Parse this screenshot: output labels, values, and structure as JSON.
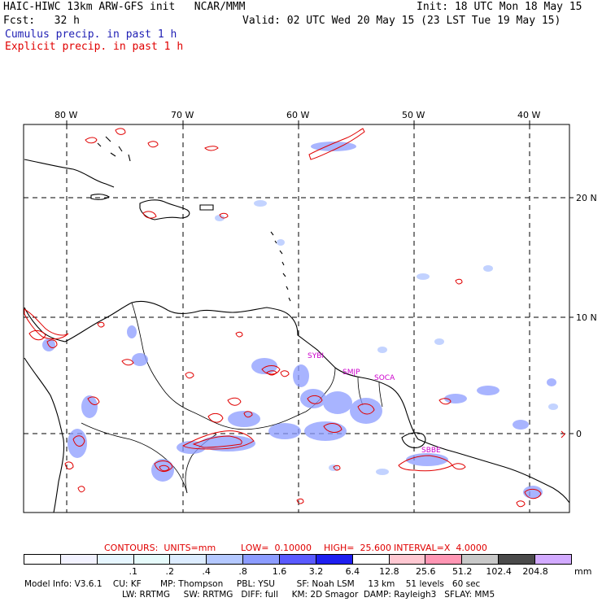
{
  "header": {
    "left_line1": "HAIC-HIWC 13km ARW-GFS init   NCAR/MMM",
    "left_line2": "Fcst:   32 h",
    "right_line1": "Init: 18 UTC Mon 18 May 15",
    "right_line2": "Valid: 02 UTC Wed 20 May 15 (23 LST Tue 19 May 15)",
    "legend_cumulus": "Cumulus precip. in past 1 h",
    "legend_explicit": "Explicit precip. in past 1 h"
  },
  "colors": {
    "cumulus": "#1f1fb4",
    "explicit": "#e00000",
    "station_labels": "#cc00cc"
  },
  "map": {
    "lon_labels": [
      "80 W",
      "70 W",
      "60 W",
      "50 W",
      "40 W"
    ],
    "lat_labels": [
      "20 N",
      "10 N",
      "0"
    ],
    "station_labels": [
      "SYBI",
      "SMJP",
      "SOCA",
      "SBBE"
    ]
  },
  "contours_line": {
    "prefix": "CONTOURS:  UNITS=mm",
    "low": "LOW=  0.10000",
    "high": "HIGH=  25.600",
    "interval": "INTERVAL=X  4.0000"
  },
  "colorbar": {
    "swatches": [
      "#ffffff",
      "#f2f2ff",
      "#e6f6ff",
      "#e6fbfb",
      "#dcecff",
      "#b4c8ff",
      "#8c9cff",
      "#5a5aff",
      "#1e1ef0",
      "#ffffff",
      "#ffc8d2",
      "#ff96b4",
      "#c8c8c8",
      "#4a4a4a",
      "#d2aaff"
    ],
    "labels": [
      ".1",
      ".2",
      ".4",
      ".8",
      "1.6",
      "3.2",
      "6.4",
      "12.8",
      "25.6",
      "51.2",
      "102.4",
      "204.8"
    ],
    "unit": "mm"
  },
  "footer": {
    "line1": "Model Info: V3.6.1    CU: KF       MP: Thompson     PBL: YSU        SF: Noah LSM     13 km    51 levels   60 sec",
    "line2": "LW: RRTMG     SW: RRTMG   DIFF: full     KM: 2D Smagor  DAMP: Rayleigh3   SFLAY: MM5"
  }
}
